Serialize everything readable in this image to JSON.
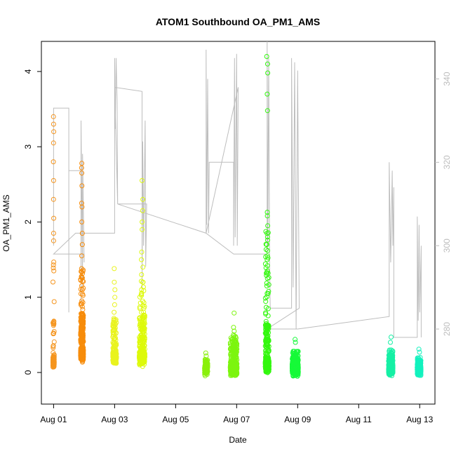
{
  "chart_data": {
    "type": "scatter",
    "title": "ATOM1 Southbound OA_PM1_AMS",
    "xlabel": "Date",
    "ylabel": "OA_PM1_AMS",
    "x_tick_labels": [
      "Aug 01",
      "Aug 03",
      "Aug 05",
      "Aug 07",
      "Aug 09",
      "Aug 11",
      "Aug 13"
    ],
    "x_ticks_day": [
      1,
      3,
      5,
      7,
      9,
      11,
      13
    ],
    "xlim_day": [
      0.6,
      13.5
    ],
    "ylim": [
      -0.42,
      4.4
    ],
    "y_ticks": [
      0,
      1,
      2,
      3,
      4
    ],
    "y_tick_labels": [
      "0",
      "1",
      "2",
      "3",
      "4"
    ],
    "y2_axis": {
      "color": "#bdbdbd",
      "ylim": [
        262,
        349
      ],
      "ticks": [
        280,
        300,
        320,
        340
      ],
      "tick_labels": [
        "280",
        "300",
        "320",
        "340"
      ]
    },
    "marker": "open-circle",
    "color_scale": "orange-yellow-green-cyan by time",
    "grid": false,
    "legend": "none",
    "series": [
      {
        "day": 1.0,
        "color": "#f5951e",
        "count": 130,
        "spread": 0.022,
        "base": 0.15,
        "max": 3.4,
        "top": [
          3.4,
          3.3,
          3.2,
          3.05,
          2.8,
          2.55,
          2.3,
          2.05,
          1.85,
          1.75,
          1.43,
          1.35
        ]
      },
      {
        "day": 1.93,
        "color": "#f78c0b",
        "count": 700,
        "spread": 0.045,
        "base": 0.25,
        "max": 2.78,
        "top": [
          2.78,
          2.72,
          2.65,
          2.48,
          2.25,
          2.2,
          2.0,
          1.85,
          1.7,
          1.55
        ]
      },
      {
        "day": 3.0,
        "color": "#e9f31f",
        "count": 240,
        "spread": 0.06,
        "base": 0.2,
        "max": 1.38,
        "top": [
          1.38,
          1.2,
          1.1,
          1.0,
          0.9,
          0.8
        ]
      },
      {
        "day": 3.9,
        "color": "#ddfa0a",
        "count": 500,
        "spread": 0.09,
        "base": 0.2,
        "max": 2.55,
        "top": [
          2.55,
          2.3,
          2.15,
          2.0,
          1.9,
          1.6,
          1.5,
          1.4,
          1.3,
          1.2,
          1.1
        ]
      },
      {
        "day": 6.0,
        "color": "#8af00c",
        "count": 180,
        "spread": 0.05,
        "base": 0.05,
        "max": 0.26,
        "top": [
          0.26,
          0.22
        ]
      },
      {
        "day": 6.9,
        "color": "#7cf50f",
        "count": 480,
        "spread": 0.11,
        "base": 0.05,
        "max": 0.79,
        "top": [
          0.79,
          0.6,
          0.55,
          0.5,
          0.45
        ]
      },
      {
        "day": 8.0,
        "color": "#33f70f",
        "count": 480,
        "spread": 0.06,
        "base": 0.1,
        "max": 4.2,
        "top": [
          4.2,
          4.1,
          3.98,
          3.7,
          3.48,
          2.13,
          2.08,
          1.95,
          1.85,
          1.8,
          1.7,
          1.62,
          1.55,
          1.5,
          1.42,
          1.35,
          1.25,
          1.15,
          1.05
        ]
      },
      {
        "day": 8.92,
        "color": "#16fa38",
        "count": 600,
        "spread": 0.1,
        "base": 0.05,
        "max": 0.44,
        "top": [
          0.44,
          0.4
        ]
      },
      {
        "day": 12.05,
        "color": "#15f0a5",
        "count": 380,
        "spread": 0.07,
        "base": 0.05,
        "max": 0.47,
        "top": [
          0.47,
          0.4
        ]
      },
      {
        "day": 12.98,
        "color": "#12f2be",
        "count": 380,
        "spread": 0.06,
        "base": 0.05,
        "max": 0.31,
        "top": [
          0.31,
          0.27
        ]
      }
    ],
    "secondary_line": {
      "color": "#bdbdbd",
      "points": [
        [
          1.0,
          300
        ],
        [
          1.0,
          333
        ],
        [
          1.5,
          333
        ],
        [
          1.5,
          284
        ],
        [
          1.5,
          318
        ],
        [
          1.9,
          318
        ],
        [
          1.9,
          286
        ],
        [
          1.9,
          330
        ],
        [
          1.95,
          290
        ],
        [
          1.95,
          322
        ],
        [
          2.0,
          296
        ],
        [
          2.0,
          298
        ],
        [
          1.0,
          298
        ],
        [
          1.72,
          303
        ],
        [
          3.0,
          303
        ],
        [
          3.0,
          345
        ],
        [
          3.02,
          328
        ],
        [
          3.05,
          345
        ],
        [
          3.08,
          335
        ],
        [
          3.1,
          310
        ],
        [
          3.0,
          338
        ],
        [
          3.9,
          337
        ],
        [
          3.9,
          290
        ],
        [
          3.92,
          325
        ],
        [
          3.95,
          300
        ],
        [
          4.0,
          330
        ],
        [
          4.02,
          295
        ],
        [
          4.05,
          310
        ],
        [
          3.1,
          310
        ],
        [
          6.0,
          303
        ],
        [
          6.0,
          347
        ],
        [
          6.02,
          305
        ],
        [
          6.05,
          340
        ],
        [
          6.08,
          303
        ],
        [
          6.1,
          320
        ],
        [
          6.1,
          320
        ],
        [
          6.9,
          320
        ],
        [
          6.9,
          300
        ],
        [
          6.93,
          345
        ],
        [
          6.95,
          302
        ],
        [
          7.0,
          346
        ],
        [
          7.02,
          300
        ],
        [
          7.05,
          338
        ],
        [
          6.0,
          303
        ],
        [
          6.9,
          298
        ],
        [
          8.0,
          298
        ],
        [
          8.0,
          349
        ],
        [
          8.02,
          300
        ],
        [
          8.05,
          345
        ],
        [
          8.08,
          296
        ],
        [
          8.1,
          285
        ],
        [
          8.8,
          285
        ],
        [
          8.8,
          345
        ],
        [
          8.85,
          290
        ],
        [
          8.9,
          344
        ],
        [
          8.95,
          280
        ],
        [
          9.0,
          342
        ],
        [
          9.05,
          285
        ],
        [
          8.0,
          280
        ],
        [
          9.0,
          280
        ],
        [
          12.0,
          283
        ],
        [
          12.0,
          320
        ],
        [
          12.05,
          296
        ],
        [
          12.1,
          318
        ],
        [
          12.12,
          300
        ],
        [
          12.15,
          314
        ],
        [
          12.15,
          278
        ],
        [
          12.92,
          278
        ],
        [
          12.92,
          307
        ],
        [
          12.95,
          282
        ],
        [
          12.98,
          305
        ],
        [
          13.0,
          284
        ],
        [
          13.05,
          300
        ],
        [
          13.05,
          278
        ]
      ]
    }
  }
}
